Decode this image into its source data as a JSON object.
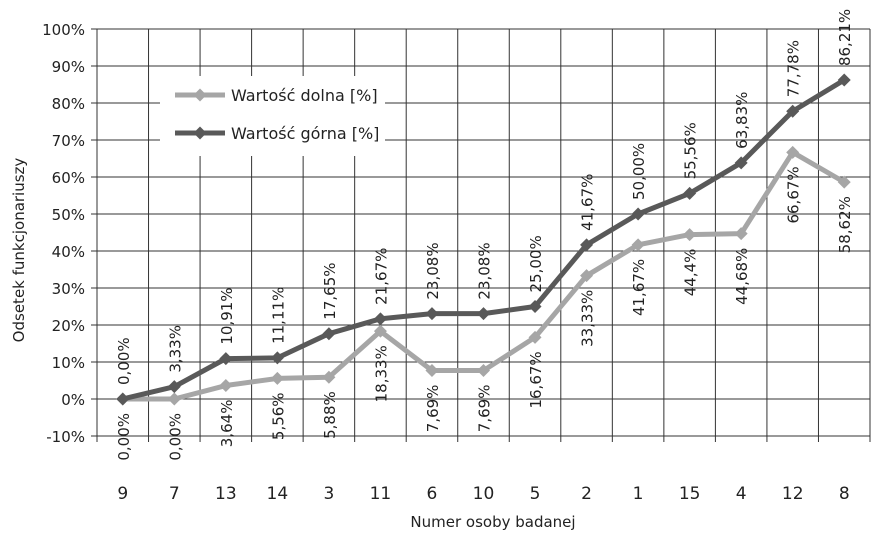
{
  "chart_data": {
    "type": "line",
    "xlabel": "Numer osoby badanej",
    "ylabel": "Odsetek funkcjonariuszy",
    "ylim": [
      -10,
      100
    ],
    "yticks": [
      "-10%",
      "0%",
      "10%",
      "20%",
      "30%",
      "40%",
      "50%",
      "60%",
      "70%",
      "80%",
      "90%",
      "100%"
    ],
    "categories": [
      "9",
      "7",
      "13",
      "14",
      "3",
      "11",
      "6",
      "10",
      "5",
      "2",
      "1",
      "15",
      "4",
      "12",
      "8"
    ],
    "grid": true,
    "legend_position": "top-left",
    "series": [
      {
        "name": "Wartość dolna [%]",
        "color": "#a6a6a6",
        "values": [
          0.0,
          0.0,
          3.64,
          5.56,
          5.88,
          18.33,
          7.69,
          7.69,
          16.67,
          33.33,
          41.67,
          44.44,
          44.68,
          66.67,
          58.62
        ],
        "labels": [
          "0,00%",
          "0,00%",
          "3,64%",
          "5,56%",
          "5,88%",
          "18,33%",
          "7,69%",
          "7,69%",
          "16,67%",
          "33,33%",
          "41,67%",
          "44,4%",
          "44,68%",
          "66,67%",
          "58,62%"
        ]
      },
      {
        "name": "Wartość górna [%]",
        "color": "#595959",
        "values": [
          0.0,
          3.33,
          10.91,
          11.11,
          17.65,
          21.67,
          23.08,
          23.08,
          25.0,
          41.67,
          50.0,
          55.56,
          63.83,
          77.78,
          86.21
        ],
        "labels": [
          "0,00%",
          "3,33%",
          "10,91%",
          "11,11%",
          "17,65%",
          "21,67%",
          "23,08%",
          "23,08%",
          "25,00%",
          "41,67%",
          "50,00%",
          "55,56%",
          "63,83%",
          "77,78%",
          "86,21%"
        ]
      }
    ]
  }
}
